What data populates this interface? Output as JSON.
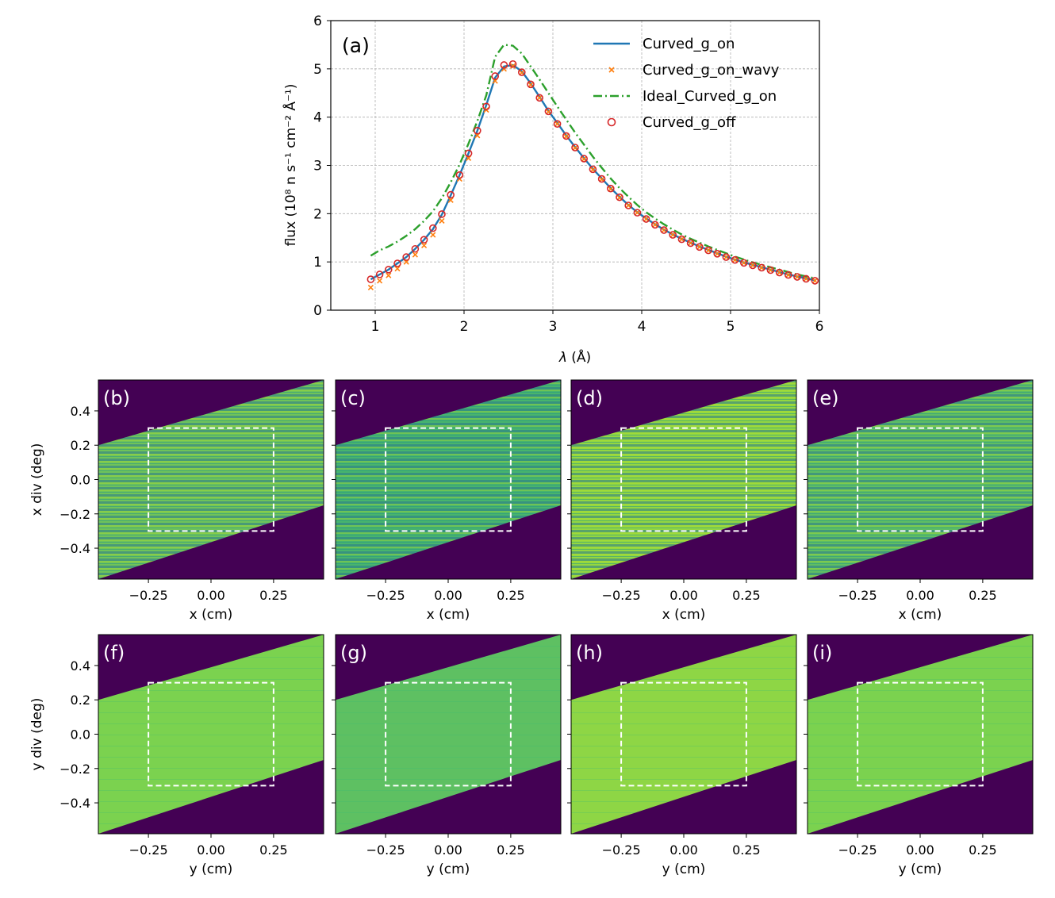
{
  "chart_data": [
    {
      "type": "line",
      "panel_label": "(a)",
      "xlabel_symbol": "λ",
      "xlabel_unit": "(Å)",
      "ylabel": "flux (10⁸ n s⁻¹ cm⁻² Å⁻¹)",
      "xlim": [
        0.5,
        6
      ],
      "ylim": [
        0,
        6
      ],
      "xticks": [
        1,
        2,
        3,
        4,
        5,
        6
      ],
      "yticks": [
        0,
        1,
        2,
        3,
        4,
        5,
        6
      ],
      "grid": true,
      "legend_position": "top-right",
      "series": [
        {
          "name": "Curved_g_on",
          "style": "solid line",
          "color": "#1f77b4",
          "x": [
            0.95,
            1.05,
            1.15,
            1.25,
            1.35,
            1.45,
            1.55,
            1.65,
            1.75,
            1.85,
            1.95,
            2.05,
            2.15,
            2.25,
            2.35,
            2.45,
            2.55,
            2.65,
            2.75,
            2.85,
            2.95,
            3.05,
            3.15,
            3.25,
            3.35,
            3.45,
            3.55,
            3.65,
            3.75,
            3.85,
            3.95,
            4.05,
            4.15,
            4.25,
            4.35,
            4.45,
            4.55,
            4.65,
            4.75,
            4.85,
            4.95,
            5.05,
            5.15,
            5.25,
            5.35,
            5.45,
            5.55,
            5.65,
            5.75,
            5.85,
            5.95
          ],
          "y": [
            0.64,
            0.74,
            0.84,
            0.97,
            1.1,
            1.27,
            1.46,
            1.68,
            1.98,
            2.38,
            2.8,
            3.25,
            3.72,
            4.25,
            4.82,
            5.05,
            5.08,
            4.95,
            4.7,
            4.42,
            4.13,
            3.88,
            3.62,
            3.38,
            3.15,
            2.93,
            2.73,
            2.53,
            2.35,
            2.18,
            2.03,
            1.9,
            1.78,
            1.67,
            1.57,
            1.48,
            1.4,
            1.32,
            1.25,
            1.18,
            1.11,
            1.05,
            0.99,
            0.94,
            0.89,
            0.84,
            0.79,
            0.74,
            0.7,
            0.66,
            0.62
          ]
        },
        {
          "name": "Curved_g_on_wavy",
          "style": "x markers",
          "color": "#ff7f0e",
          "x": [
            0.95,
            1.05,
            1.15,
            1.25,
            1.35,
            1.45,
            1.55,
            1.65,
            1.75,
            1.85,
            1.95,
            2.05,
            2.15,
            2.25,
            2.35,
            2.45,
            2.55,
            2.65,
            2.75,
            2.85,
            2.95,
            3.05,
            3.15,
            3.25,
            3.35,
            3.45,
            3.55,
            3.65,
            3.75,
            3.85,
            3.95,
            4.05,
            4.15,
            4.25,
            4.35,
            4.45,
            4.55,
            4.65,
            4.75,
            4.85,
            4.95,
            5.05,
            5.15,
            5.25,
            5.35,
            5.45,
            5.55,
            5.65,
            5.75,
            5.85,
            5.95
          ],
          "y": [
            0.47,
            0.61,
            0.72,
            0.86,
            1.0,
            1.15,
            1.34,
            1.56,
            1.85,
            2.28,
            2.72,
            3.15,
            3.62,
            4.15,
            4.75,
            5.0,
            5.06,
            4.92,
            4.67,
            4.4,
            4.11,
            3.86,
            3.6,
            3.36,
            3.13,
            2.91,
            2.71,
            2.51,
            2.33,
            2.17,
            2.02,
            1.89,
            1.77,
            1.66,
            1.56,
            1.47,
            1.39,
            1.31,
            1.24,
            1.17,
            1.1,
            1.04,
            0.98,
            0.93,
            0.88,
            0.83,
            0.78,
            0.73,
            0.69,
            0.65,
            0.61
          ]
        },
        {
          "name": "Ideal_Curved_g_on",
          "style": "dash-dot line",
          "color": "#2ca02c",
          "x": [
            0.95,
            1.05,
            1.15,
            1.25,
            1.35,
            1.45,
            1.55,
            1.65,
            1.75,
            1.85,
            1.95,
            2.05,
            2.15,
            2.25,
            2.35,
            2.45,
            2.55,
            2.65,
            2.75,
            2.85,
            2.95,
            3.05,
            3.15,
            3.25,
            3.35,
            3.45,
            3.55,
            3.65,
            3.75,
            3.85,
            3.95,
            4.05,
            4.15,
            4.25,
            4.35,
            4.45,
            4.55,
            4.65,
            4.75,
            4.85,
            4.95,
            5.05,
            5.15,
            5.25,
            5.35,
            5.45,
            5.55,
            5.65,
            5.75,
            5.85,
            5.95
          ],
          "y": [
            1.13,
            1.24,
            1.32,
            1.42,
            1.54,
            1.68,
            1.85,
            2.05,
            2.32,
            2.65,
            3.02,
            3.45,
            3.92,
            4.45,
            5.25,
            5.5,
            5.48,
            5.32,
            5.05,
            4.78,
            4.5,
            4.22,
            3.95,
            3.68,
            3.43,
            3.18,
            2.95,
            2.73,
            2.53,
            2.35,
            2.18,
            2.03,
            1.9,
            1.78,
            1.67,
            1.57,
            1.48,
            1.4,
            1.32,
            1.25,
            1.18,
            1.11,
            1.05,
            0.99,
            0.94,
            0.89,
            0.84,
            0.79,
            0.74,
            0.7,
            0.66
          ]
        },
        {
          "name": "Curved_g_off",
          "style": "open circle markers",
          "color": "#d62728",
          "x": [
            0.95,
            1.05,
            1.15,
            1.25,
            1.35,
            1.45,
            1.55,
            1.65,
            1.75,
            1.85,
            1.95,
            2.05,
            2.15,
            2.25,
            2.35,
            2.45,
            2.55,
            2.65,
            2.75,
            2.85,
            2.95,
            3.05,
            3.15,
            3.25,
            3.35,
            3.45,
            3.55,
            3.65,
            3.75,
            3.85,
            3.95,
            4.05,
            4.15,
            4.25,
            4.35,
            4.45,
            4.55,
            4.65,
            4.75,
            4.85,
            4.95,
            5.05,
            5.15,
            5.25,
            5.35,
            5.45,
            5.55,
            5.65,
            5.75,
            5.85,
            5.95
          ],
          "y": [
            0.64,
            0.74,
            0.84,
            0.97,
            1.1,
            1.27,
            1.46,
            1.7,
            1.99,
            2.39,
            2.8,
            3.25,
            3.72,
            4.22,
            4.85,
            5.08,
            5.1,
            4.93,
            4.68,
            4.4,
            4.12,
            3.86,
            3.61,
            3.37,
            3.14,
            2.92,
            2.72,
            2.52,
            2.34,
            2.17,
            2.02,
            1.89,
            1.77,
            1.66,
            1.56,
            1.47,
            1.39,
            1.31,
            1.24,
            1.17,
            1.1,
            1.04,
            0.98,
            0.93,
            0.88,
            0.83,
            0.78,
            0.73,
            0.69,
            0.65,
            0.61
          ]
        }
      ]
    },
    {
      "type": "heatmap",
      "rows": [
        {
          "ylabel": "x div (deg)",
          "xlabel": "x (cm)",
          "labels": [
            "(b)",
            "(c)",
            "(d)",
            "(e)"
          ],
          "tone": "streaky"
        },
        {
          "ylabel": "y div (deg)",
          "xlabel": "y (cm)",
          "labels": [
            "(f)",
            "(g)",
            "(h)",
            "(i)"
          ],
          "tone": "smooth"
        }
      ],
      "xlim": [
        -0.45,
        0.45
      ],
      "ylim": [
        -0.58,
        0.58
      ],
      "xticks": [
        -0.25,
        0.0,
        0.25
      ],
      "xtick_labels": [
        "−0.25",
        "0.00",
        "0.25"
      ],
      "yticks": [
        0.4,
        0.2,
        0.0,
        -0.2,
        -0.4
      ],
      "ytick_labels": [
        "0.4",
        "0.2",
        "0.0",
        "−0.2",
        "−0.4"
      ],
      "acceptance_box": {
        "x": [
          -0.25,
          0.25
        ],
        "y": [
          -0.3,
          0.3
        ],
        "style": "white dashed"
      },
      "illuminated_band": {
        "upper_edge_at_xmin": 0.2,
        "upper_edge_at_xmax": 0.58,
        "lower_edge_at_xmin": -0.58,
        "lower_edge_at_xmax": -0.15
      },
      "colormap": "viridis"
    }
  ]
}
